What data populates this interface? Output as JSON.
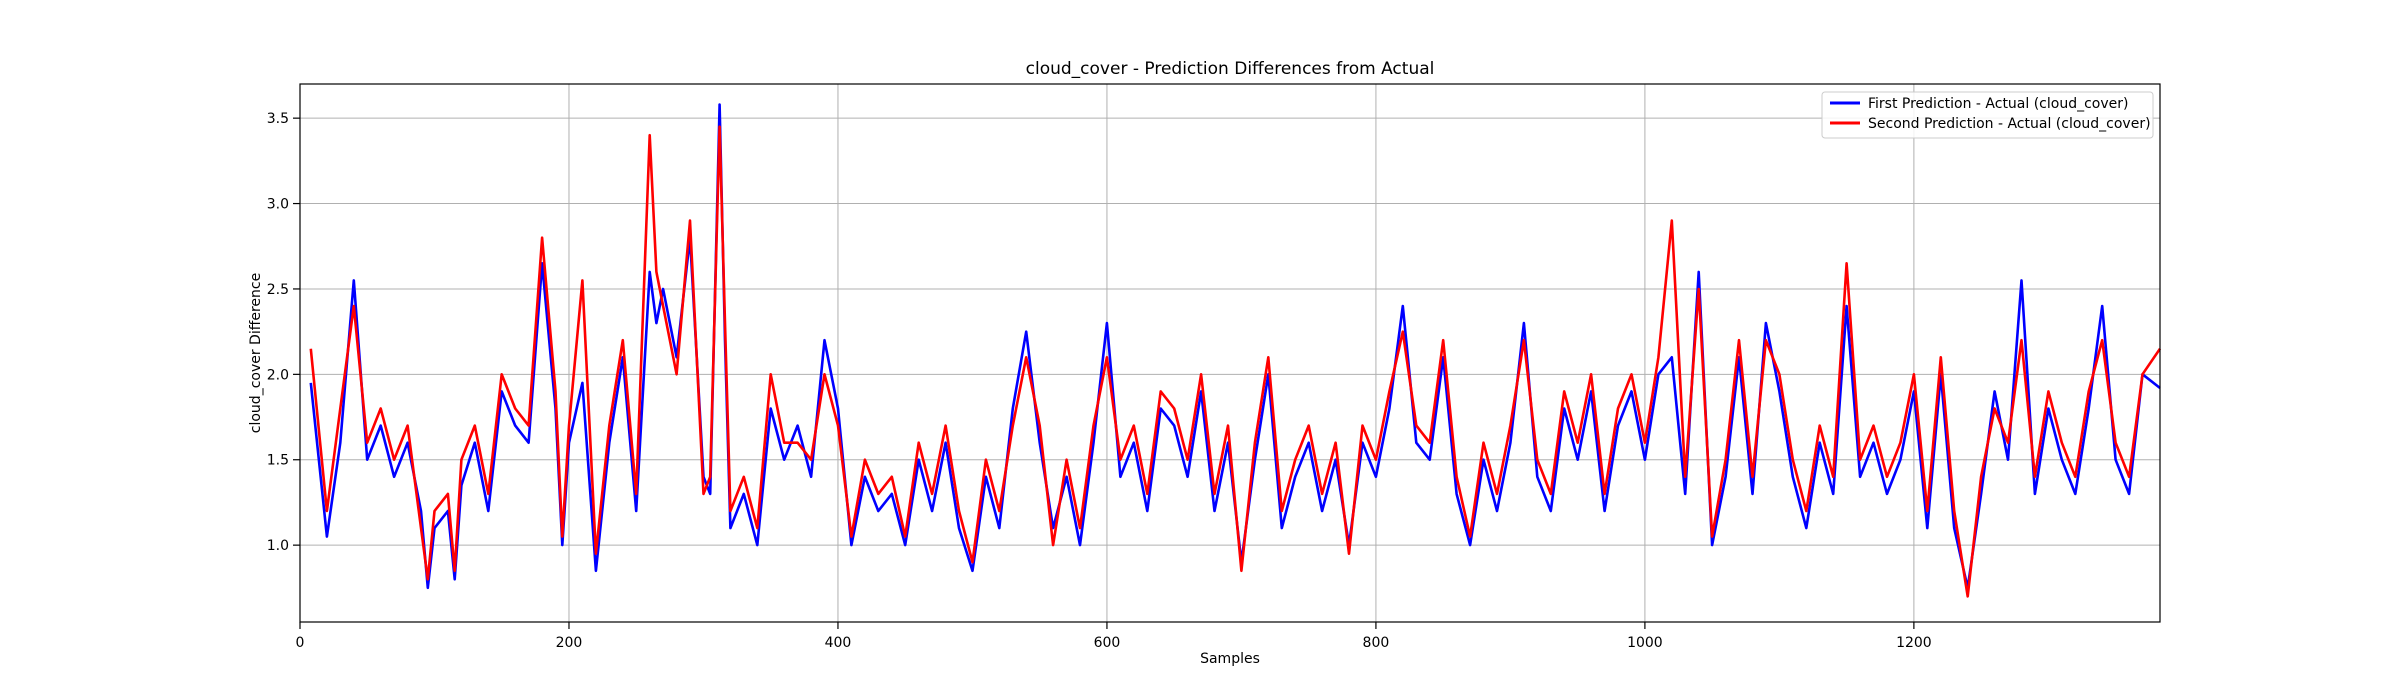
{
  "chart_data": {
    "type": "line",
    "title": "cloud_cover - Prediction Differences from Actual",
    "xlabel": "Samples",
    "ylabel": "cloud_cover Difference",
    "xlim": [
      0,
      1383
    ],
    "ylim": [
      0.55,
      3.7
    ],
    "xticks": [
      0,
      200,
      400,
      600,
      800,
      1000,
      1200
    ],
    "yticks": [
      1.0,
      1.5,
      2.0,
      2.5,
      3.0,
      3.5
    ],
    "ytick_labels": [
      "1.0",
      "1.5",
      "2.0",
      "2.5",
      "3.0",
      "3.5"
    ],
    "grid": true,
    "legend_position": "top-right",
    "x": [
      8,
      20,
      30,
      40,
      50,
      60,
      70,
      80,
      90,
      95,
      100,
      110,
      115,
      120,
      130,
      140,
      150,
      160,
      170,
      180,
      190,
      195,
      200,
      210,
      220,
      230,
      240,
      250,
      260,
      265,
      270,
      280,
      290,
      300,
      305,
      312,
      316,
      320,
      330,
      340,
      350,
      360,
      370,
      380,
      390,
      400,
      410,
      420,
      430,
      440,
      450,
      460,
      470,
      480,
      490,
      500,
      510,
      520,
      530,
      540,
      550,
      560,
      570,
      580,
      590,
      600,
      610,
      620,
      630,
      640,
      650,
      660,
      670,
      680,
      690,
      700,
      710,
      720,
      730,
      740,
      750,
      760,
      770,
      780,
      790,
      800,
      810,
      820,
      830,
      840,
      850,
      860,
      870,
      880,
      890,
      900,
      910,
      920,
      930,
      940,
      950,
      960,
      970,
      980,
      990,
      1000,
      1010,
      1020,
      1030,
      1040,
      1050,
      1060,
      1070,
      1080,
      1090,
      1100,
      1110,
      1120,
      1130,
      1140,
      1150,
      1160,
      1170,
      1180,
      1190,
      1200,
      1210,
      1220,
      1230,
      1240,
      1250,
      1260,
      1270,
      1280,
      1290,
      1300,
      1310,
      1320,
      1330,
      1340,
      1350,
      1360,
      1370,
      1383
    ],
    "series": [
      {
        "name": "First Prediction - Actual (cloud_cover)",
        "color": "#0000ff",
        "values": [
          1.95,
          1.05,
          1.6,
          2.55,
          1.5,
          1.7,
          1.4,
          1.6,
          1.2,
          0.75,
          1.1,
          1.2,
          0.8,
          1.35,
          1.6,
          1.2,
          1.9,
          1.7,
          1.6,
          2.65,
          1.8,
          1.0,
          1.6,
          1.95,
          0.85,
          1.6,
          2.1,
          1.2,
          2.6,
          2.3,
          2.5,
          2.1,
          2.8,
          1.4,
          1.3,
          3.58,
          2.2,
          1.1,
          1.3,
          1.0,
          1.8,
          1.5,
          1.7,
          1.4,
          2.2,
          1.8,
          1.0,
          1.4,
          1.2,
          1.3,
          1.0,
          1.5,
          1.2,
          1.6,
          1.1,
          0.85,
          1.4,
          1.1,
          1.8,
          2.25,
          1.6,
          1.1,
          1.4,
          1.0,
          1.6,
          2.3,
          1.4,
          1.6,
          1.2,
          1.8,
          1.7,
          1.4,
          1.9,
          1.2,
          1.6,
          0.9,
          1.5,
          2.0,
          1.1,
          1.4,
          1.6,
          1.2,
          1.5,
          1.0,
          1.6,
          1.4,
          1.8,
          2.4,
          1.6,
          1.5,
          2.1,
          1.3,
          1.0,
          1.5,
          1.2,
          1.6,
          2.3,
          1.4,
          1.2,
          1.8,
          1.5,
          1.9,
          1.2,
          1.7,
          1.9,
          1.5,
          2.0,
          2.1,
          1.3,
          2.6,
          1.0,
          1.4,
          2.1,
          1.3,
          2.3,
          1.9,
          1.4,
          1.1,
          1.6,
          1.3,
          2.4,
          1.4,
          1.6,
          1.3,
          1.5,
          1.9,
          1.1,
          2.0,
          1.1,
          0.75,
          1.3,
          1.9,
          1.5,
          2.55,
          1.3,
          1.8,
          1.5,
          1.3,
          1.8,
          2.4,
          1.5,
          1.3,
          2.0,
          1.92
        ]
      },
      {
        "name": "Second Prediction - Actual (cloud_cover)",
        "color": "#ff0000",
        "values": [
          2.15,
          1.2,
          1.8,
          2.4,
          1.6,
          1.8,
          1.5,
          1.7,
          1.1,
          0.8,
          1.2,
          1.3,
          0.85,
          1.5,
          1.7,
          1.3,
          2.0,
          1.8,
          1.7,
          2.8,
          1.9,
          1.05,
          1.7,
          2.55,
          0.95,
          1.7,
          2.2,
          1.3,
          3.4,
          2.6,
          2.4,
          2.0,
          2.9,
          1.3,
          1.4,
          3.45,
          2.3,
          1.2,
          1.4,
          1.1,
          2.0,
          1.6,
          1.6,
          1.5,
          2.0,
          1.7,
          1.05,
          1.5,
          1.3,
          1.4,
          1.05,
          1.6,
          1.3,
          1.7,
          1.2,
          0.9,
          1.5,
          1.2,
          1.7,
          2.1,
          1.7,
          1.0,
          1.5,
          1.1,
          1.7,
          2.1,
          1.5,
          1.7,
          1.3,
          1.9,
          1.8,
          1.5,
          2.0,
          1.3,
          1.7,
          0.85,
          1.6,
          2.1,
          1.2,
          1.5,
          1.7,
          1.3,
          1.6,
          0.95,
          1.7,
          1.5,
          1.9,
          2.25,
          1.7,
          1.6,
          2.2,
          1.4,
          1.05,
          1.6,
          1.3,
          1.7,
          2.2,
          1.5,
          1.3,
          1.9,
          1.6,
          2.0,
          1.3,
          1.8,
          2.0,
          1.6,
          2.1,
          2.9,
          1.4,
          2.5,
          1.05,
          1.5,
          2.2,
          1.4,
          2.2,
          2.0,
          1.5,
          1.2,
          1.7,
          1.4,
          2.65,
          1.5,
          1.7,
          1.4,
          1.6,
          2.0,
          1.2,
          2.1,
          1.2,
          0.7,
          1.4,
          1.8,
          1.6,
          2.2,
          1.4,
          1.9,
          1.6,
          1.4,
          1.9,
          2.2,
          1.6,
          1.4,
          2.0,
          2.15
        ]
      }
    ]
  }
}
